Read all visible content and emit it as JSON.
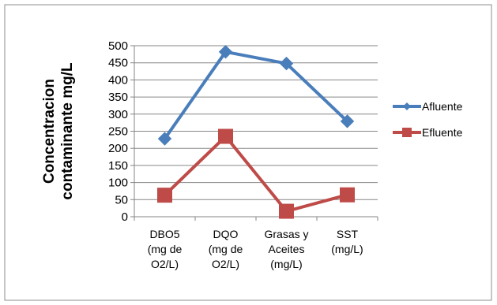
{
  "chart_data": {
    "type": "line",
    "title": "",
    "xlabel": "",
    "ylabel_lines": [
      "Concentracion",
      "contaminante mg/L"
    ],
    "categories": [
      [
        "DBO5",
        "(mg de",
        "O2/L)"
      ],
      [
        "DQO",
        "(mg de",
        "O2/L)"
      ],
      [
        "Grasas y",
        "Aceites",
        "(mg/L)"
      ],
      [
        "SST",
        "(mg/L)"
      ]
    ],
    "ylim": [
      0,
      500
    ],
    "yticks": [
      0,
      50,
      100,
      150,
      200,
      250,
      300,
      350,
      400,
      450,
      500
    ],
    "grid": true,
    "legend_position": "right",
    "series": [
      {
        "name": "Afluente",
        "values": [
          228,
          482,
          448,
          279
        ],
        "color": "#4a7ebb",
        "marker": "diamond"
      },
      {
        "name": "Efluente",
        "values": [
          63,
          235,
          16,
          64
        ],
        "color": "#be4b48",
        "marker": "square"
      }
    ]
  }
}
